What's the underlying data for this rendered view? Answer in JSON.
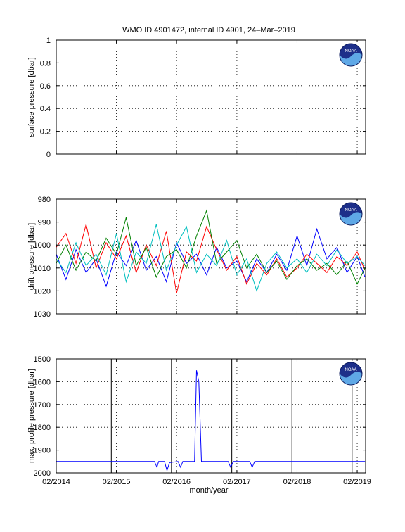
{
  "title": "WMO ID 4901472, internal ID 4901, 24–Mar–2019",
  "xlabel": "month/year",
  "x_tick_labels": [
    "02/2014",
    "02/2015",
    "02/2016",
    "02/2017",
    "02/2018",
    "02/2019"
  ],
  "logo_text": "NOAA",
  "colors": {
    "axes": "#000000",
    "grid": "#000000",
    "blue": "#0000ff",
    "red": "#ff0000",
    "green": "#008000",
    "cyan": "#00bfbf",
    "logo_blue": "#1d2f8a",
    "logo_light": "#5fa8e6"
  },
  "chart_data": [
    {
      "type": "line",
      "id": "surface",
      "ylabel": "surface pressure [dbar]",
      "ylim": [
        0,
        1
      ],
      "y_reversed": false,
      "yticks": [
        0,
        0.2,
        0.4,
        0.6,
        0.8,
        1
      ],
      "ytick_labels": [
        "0",
        "0.2",
        "0.4",
        "0.6",
        "0.8",
        "1"
      ],
      "xlim": [
        "2014-02-01",
        "2019-03-24"
      ],
      "grid": true,
      "series": []
    },
    {
      "type": "line",
      "id": "drift",
      "ylabel": "drift pressure [dbar]",
      "ylim": [
        980,
        1030
      ],
      "y_reversed": true,
      "yticks": [
        980,
        990,
        1000,
        1010,
        1020,
        1030
      ],
      "ytick_labels": [
        "980",
        "990",
        "1000",
        "1010",
        "1020",
        "1030"
      ],
      "xlim": [
        "2014-02-01",
        "2019-03-24"
      ],
      "grid": true,
      "series": [
        {
          "color": "blue",
          "x": [
            "2014-02-01",
            "2014-04-01",
            "2014-06-01",
            "2014-08-01",
            "2014-10-01",
            "2014-12-01",
            "2015-02-01",
            "2015-04-01",
            "2015-06-01",
            "2015-08-01",
            "2015-10-01",
            "2015-12-01",
            "2016-02-01",
            "2016-04-01",
            "2016-06-01",
            "2016-08-01",
            "2016-10-01",
            "2016-12-01",
            "2017-02-01",
            "2017-04-01",
            "2017-06-01",
            "2017-08-01",
            "2017-10-01",
            "2017-12-01",
            "2018-02-01",
            "2018-04-01",
            "2018-06-01",
            "2018-08-01",
            "2018-10-01",
            "2018-12-01",
            "2019-02-01",
            "2019-03-20"
          ],
          "y": [
            1004,
            1015,
            1002,
            1012,
            1006,
            1018,
            1003,
            1009,
            998,
            1011,
            1005,
            1016,
            999,
            1008,
            1004,
            1013,
            1001,
            1010,
            1007,
            1016,
            1006,
            1012,
            1004,
            1011,
            996,
            1009,
            993,
            1006,
            1001,
            1012,
            1005,
            1014
          ]
        },
        {
          "color": "red",
          "x": [
            "2014-02-01",
            "2014-04-01",
            "2014-06-01",
            "2014-08-01",
            "2014-10-01",
            "2014-12-01",
            "2015-02-01",
            "2015-04-01",
            "2015-06-01",
            "2015-08-01",
            "2015-10-01",
            "2015-12-01",
            "2016-02-01",
            "2016-04-01",
            "2016-06-01",
            "2016-08-01",
            "2016-10-01",
            "2016-12-01",
            "2017-02-01",
            "2017-04-01",
            "2017-06-01",
            "2017-08-01",
            "2017-10-01",
            "2017-12-01",
            "2018-02-01",
            "2018-04-01",
            "2018-06-01",
            "2018-08-01",
            "2018-10-01",
            "2018-12-01",
            "2019-02-01",
            "2019-03-20"
          ],
          "y": [
            1001,
            995,
            1008,
            991,
            1010,
            999,
            1006,
            996,
            1012,
            1000,
            1009,
            994,
            1021,
            1003,
            1007,
            992,
            1002,
            1011,
            1005,
            1017,
            1008,
            1013,
            1006,
            1014,
            1010,
            1004,
            1008,
            1012,
            1005,
            1009,
            1003,
            1011
          ]
        },
        {
          "color": "green",
          "x": [
            "2014-02-01",
            "2014-04-01",
            "2014-06-01",
            "2014-08-01",
            "2014-10-01",
            "2014-12-01",
            "2015-02-01",
            "2015-04-01",
            "2015-06-01",
            "2015-08-01",
            "2015-10-01",
            "2015-12-01",
            "2016-02-01",
            "2016-04-01",
            "2016-06-01",
            "2016-08-01",
            "2016-10-01",
            "2016-12-01",
            "2017-02-01",
            "2017-04-01",
            "2017-06-01",
            "2017-08-01",
            "2017-10-01",
            "2017-12-01",
            "2018-02-01",
            "2018-04-01",
            "2018-06-01",
            "2018-08-01",
            "2018-10-01",
            "2018-12-01",
            "2019-02-01",
            "2019-03-20"
          ],
          "y": [
            1008,
            1000,
            1011,
            1003,
            1007,
            997,
            1004,
            988,
            1009,
            1001,
            1014,
            1005,
            1002,
            1010,
            996,
            985,
            1008,
            1003,
            998,
            1010,
            1004,
            1012,
            1007,
            1015,
            1009,
            1006,
            1011,
            1008,
            1013,
            1007,
            1017,
            1010
          ]
        },
        {
          "color": "cyan",
          "x": [
            "2014-02-01",
            "2014-04-01",
            "2014-06-01",
            "2014-08-01",
            "2014-10-01",
            "2014-12-01",
            "2015-02-01",
            "2015-04-01",
            "2015-06-01",
            "2015-08-01",
            "2015-10-01",
            "2015-12-01",
            "2016-02-01",
            "2016-04-01",
            "2016-06-01",
            "2016-08-01",
            "2016-10-01",
            "2016-12-01",
            "2017-02-01",
            "2017-04-01",
            "2017-06-01",
            "2017-08-01",
            "2017-10-01",
            "2017-12-01",
            "2018-02-01",
            "2018-04-01",
            "2018-06-01",
            "2018-08-01",
            "2018-10-01",
            "2018-12-01",
            "2019-02-01",
            "2019-03-20"
          ],
          "y": [
            1006,
            1012,
            999,
            1009,
            1004,
            1013,
            995,
            1016,
            1003,
            1008,
            991,
            1011,
            1000,
            992,
            1012,
            1004,
            1009,
            998,
            1013,
            1006,
            1020,
            1008,
            1003,
            1010,
            1006,
            1012,
            1004,
            1009,
            1002,
            1008,
            1005,
            1009
          ]
        }
      ]
    },
    {
      "type": "line",
      "id": "max_profile",
      "ylabel": "max. profile pressure [dbar]",
      "ylim": [
        1500,
        2000
      ],
      "y_reversed": true,
      "yticks": [
        1500,
        1600,
        1700,
        1800,
        1900,
        2000
      ],
      "ytick_labels": [
        "1500",
        "1600",
        "1700",
        "1800",
        "1900",
        "2000"
      ],
      "xlim": [
        "2014-02-01",
        "2019-03-24"
      ],
      "grid": true,
      "vertical_lines": [
        "2015-01-01",
        "2016-01-01",
        "2017-01-01",
        "2018-01-01",
        "2019-01-01"
      ],
      "series": [
        {
          "color": "blue",
          "x": [
            "2014-02-01",
            "2015-09-20",
            "2015-10-05",
            "2015-10-15",
            "2015-11-01",
            "2015-11-20",
            "2015-12-05",
            "2015-12-20",
            "2016-02-10",
            "2016-02-25",
            "2016-03-10",
            "2016-03-25",
            "2016-05-01",
            "2016-05-20",
            "2016-06-01",
            "2016-06-15",
            "2016-07-01",
            "2016-07-10",
            "2016-12-10",
            "2016-12-25",
            "2017-01-10",
            "2017-04-20",
            "2017-05-05",
            "2017-05-20",
            "2019-03-20"
          ],
          "y": [
            1950,
            1950,
            1975,
            1950,
            1950,
            1950,
            1990,
            1955,
            1950,
            1975,
            1950,
            1950,
            1950,
            1950,
            1550,
            1600,
            1950,
            1950,
            1950,
            1975,
            1950,
            1950,
            1975,
            1950,
            1950
          ]
        }
      ]
    }
  ]
}
